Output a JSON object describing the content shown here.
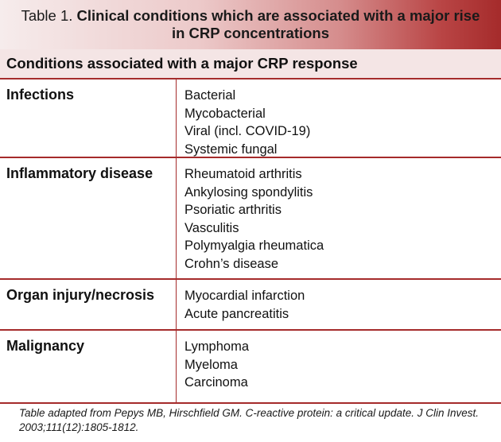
{
  "title": {
    "prefix": "Table 1.",
    "line1_bold": "Clinical conditions which are associated with a major rise",
    "line2_bold": "in CRP concentrations"
  },
  "section_heading": "Conditions associated with a major CRP response",
  "rows": [
    {
      "category": "Infections",
      "items": [
        "Bacterial",
        "Mycobacterial",
        "Viral (incl. COVID-19)",
        "Systemic fungal"
      ]
    },
    {
      "category": "Inflammatory disease",
      "items": [
        "Rheumatoid arthritis",
        "Ankylosing spondylitis",
        "Psoriatic arthritis",
        "Vasculitis",
        "Polymyalgia rheumatica",
        "Crohn’s disease"
      ]
    },
    {
      "category": "Organ injury/necrosis",
      "items": [
        "Myocardial infarction",
        "Acute pancreatitis"
      ]
    },
    {
      "category": "Malignancy",
      "items": [
        "Lymphoma",
        "Myeloma",
        "Carcinoma"
      ]
    }
  ],
  "footnote": {
    "line1": "Table adapted from Pepys MB, Hirschfield GM. C-reactive protein: a critical update. J Clin Invest.",
    "line2": "2003;111(12):1805-1812."
  },
  "colors": {
    "accent": "#a52b2b",
    "section_bg": "#f4e5e5"
  }
}
